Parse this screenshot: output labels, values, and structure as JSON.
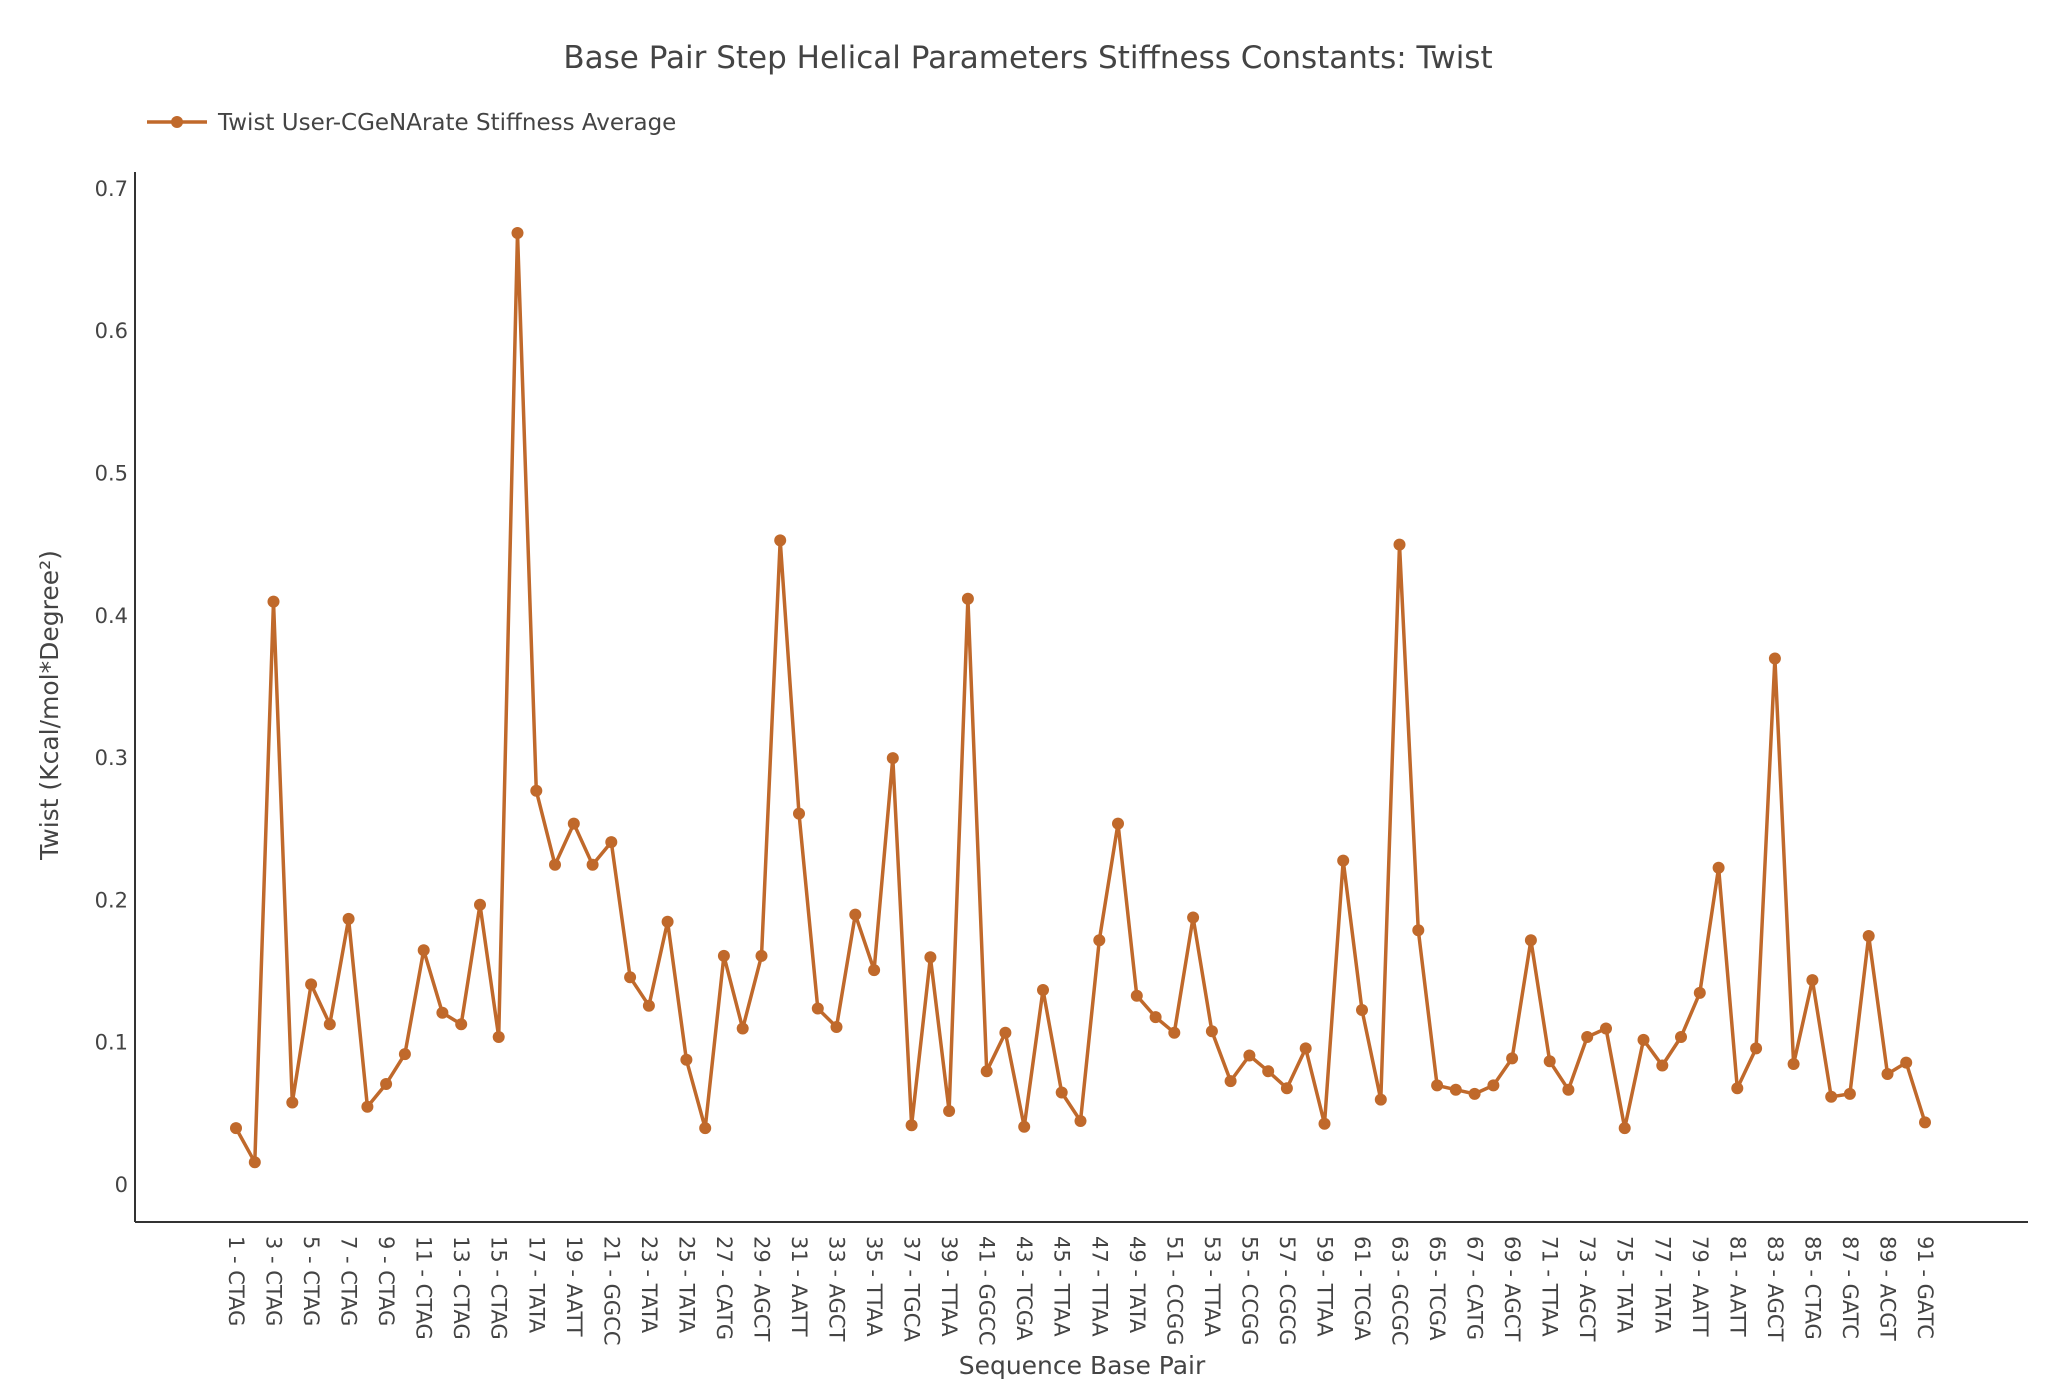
{
  "chart_data": {
    "type": "line",
    "title": "Base Pair Step Helical Parameters Stiffness Constants: Twist",
    "xlabel": "Sequence Base Pair",
    "ylabel": "Twist (Kcal/mol*Degree²)",
    "ylim": [
      0,
      0.7
    ],
    "yticks": [
      "0",
      "0.1",
      "0.2",
      "0.3",
      "0.4",
      "0.5",
      "0.6",
      "0.7"
    ],
    "grid": false,
    "legend_position": "top-left",
    "series_color": "#c0692b",
    "x_tick_labels": [
      "1 - CTAG",
      "3 - CTAG",
      "5 - CTAG",
      "7 - CTAG",
      "9 - CTAG",
      "11 - CTAG",
      "13 - CTAG",
      "15 - CTAG",
      "17 - TATA",
      "19 - AATT",
      "21 - GGCC",
      "23 - TATA",
      "25 - TATA",
      "27 - CATG",
      "29 - AGCT",
      "31 - AATT",
      "33 - AGCT",
      "35 - TTAA",
      "37 - TGCA",
      "39 - TTAA",
      "41 - GGCC",
      "43 - TCGA",
      "45 - TTAA",
      "47 - TTAA",
      "49 - TATA",
      "51 - CCGG",
      "53 - TTAA",
      "55 - CCGG",
      "57 - CGCG",
      "59 - TTAA",
      "61 - TCGA",
      "63 - GCGC",
      "65 - TCGA",
      "67 - CATG",
      "69 - AGCT",
      "71 - TTAA",
      "73 - AGCT",
      "75 - TATA",
      "77 - TATA",
      "79 - AATT",
      "81 - AATT",
      "83 - AGCT",
      "85 - CTAG",
      "87 - GATC",
      "89 - ACGT",
      "91 - GATC"
    ],
    "series": [
      {
        "name": "Twist User-CGeNArate Stiffness Average",
        "values": [
          0.04,
          0.016,
          0.41,
          0.058,
          0.141,
          0.113,
          0.187,
          0.055,
          0.071,
          0.092,
          0.165,
          0.121,
          0.113,
          0.197,
          0.104,
          0.669,
          0.277,
          0.225,
          0.254,
          0.225,
          0.241,
          0.146,
          0.126,
          0.185,
          0.088,
          0.04,
          0.161,
          0.11,
          0.161,
          0.453,
          0.261,
          0.124,
          0.111,
          0.19,
          0.151,
          0.3,
          0.042,
          0.16,
          0.052,
          0.412,
          0.08,
          0.107,
          0.041,
          0.137,
          0.065,
          0.045,
          0.172,
          0.254,
          0.133,
          0.118,
          0.107,
          0.188,
          0.108,
          0.073,
          0.091,
          0.08,
          0.068,
          0.096,
          0.043,
          0.228,
          0.123,
          0.06,
          0.45,
          0.179,
          0.07,
          0.067,
          0.064,
          0.07,
          0.089,
          0.172,
          0.087,
          0.067,
          0.104,
          0.11,
          0.04,
          0.102,
          0.084,
          0.104,
          0.135,
          0.223,
          0.068,
          0.096,
          0.37,
          0.085,
          0.144,
          0.062,
          0.064,
          0.175,
          0.078,
          0.086,
          0.044
        ]
      }
    ]
  }
}
